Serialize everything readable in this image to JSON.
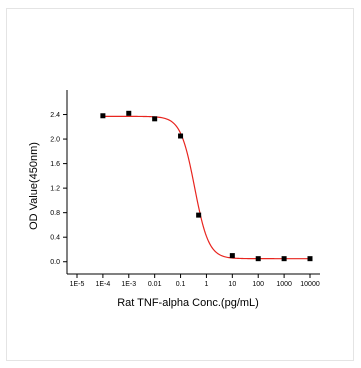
{
  "chart_data": {
    "type": "scatter",
    "xlabel": "Rat TNF-alpha Conc.(pg/mL)",
    "ylabel": "OD Value(450nm)",
    "x_scale": "log",
    "xlim": [
      1e-05,
      10000
    ],
    "ylim": [
      -0.2,
      2.8
    ],
    "x_ticks": [
      1e-05,
      0.0001,
      0.001,
      0.01,
      0.1,
      1,
      10,
      100,
      1000,
      10000
    ],
    "x_tick_labels": [
      "1E-5",
      "1E-4",
      "1E-3",
      "0.01",
      "0.1",
      "1",
      "10",
      "100",
      "1000",
      "10000"
    ],
    "y_ticks": [
      0.0,
      0.4,
      0.8,
      1.2,
      1.6,
      2.0,
      2.4
    ],
    "y_tick_labels": [
      "0.0",
      "0.4",
      "0.8",
      "1.2",
      "1.6",
      "2.0",
      "2.4"
    ],
    "grid": false,
    "series": [
      {
        "type": "scatter",
        "marker": "square",
        "color": "#000000",
        "x": [
          0.0001,
          0.001,
          0.01,
          0.1,
          0.5,
          10,
          100,
          1000,
          10000
        ],
        "y": [
          2.38,
          2.42,
          2.33,
          2.05,
          0.76,
          0.1,
          0.05,
          0.05,
          0.05
        ]
      },
      {
        "type": "line",
        "fit": "4PL",
        "color": "#e8251f",
        "top": 2.37,
        "bottom": 0.05,
        "ec50": 0.35,
        "hill": 1.6
      }
    ]
  }
}
